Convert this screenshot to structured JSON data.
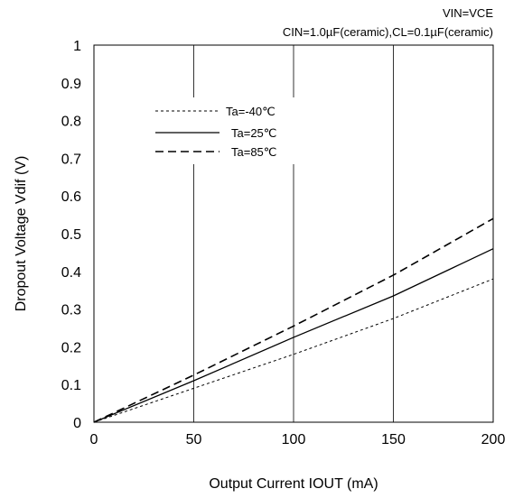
{
  "chart_data": {
    "type": "line",
    "conditions": [
      "VIN=VCE",
      "CIN=1.0µF(ceramic),CL=0.1µF(ceramic)"
    ],
    "xlabel": "Output Current IOUT (mA)",
    "ylabel": "Dropout Voltage Vdif (V)",
    "xlim": [
      0,
      200
    ],
    "ylim": [
      0,
      1
    ],
    "grid": true,
    "legend_placement": "upper-left",
    "x_ticks": [
      0,
      50,
      100,
      150,
      200
    ],
    "x_tick_labels": [
      "0",
      "50",
      "100",
      "150",
      "200"
    ],
    "y_ticks": [
      0,
      0.1,
      0.2,
      0.3,
      0.4,
      0.5,
      0.6,
      0.7,
      0.8,
      0.9,
      1
    ],
    "y_tick_labels": [
      "0",
      "0.1",
      "0.2",
      "0.3",
      "0.4",
      "0.5",
      "0.6",
      "0.7",
      "0.8",
      "0.9",
      "1"
    ],
    "series": [
      {
        "name": "Ta=-40℃",
        "style": "dotted",
        "x": [
          0,
          50,
          100,
          150,
          200
        ],
        "y": [
          0,
          0.09,
          0.18,
          0.275,
          0.38
        ]
      },
      {
        "name": "Ta=25℃",
        "style": "solid",
        "x": [
          0,
          50,
          100,
          150,
          180,
          200
        ],
        "y": [
          0,
          0.11,
          0.225,
          0.335,
          0.41,
          0.46
        ]
      },
      {
        "name": "Ta=85℃",
        "style": "dashed",
        "x": [
          0,
          50,
          100,
          150,
          200
        ],
        "y": [
          0,
          0.125,
          0.255,
          0.39,
          0.54
        ]
      }
    ]
  }
}
